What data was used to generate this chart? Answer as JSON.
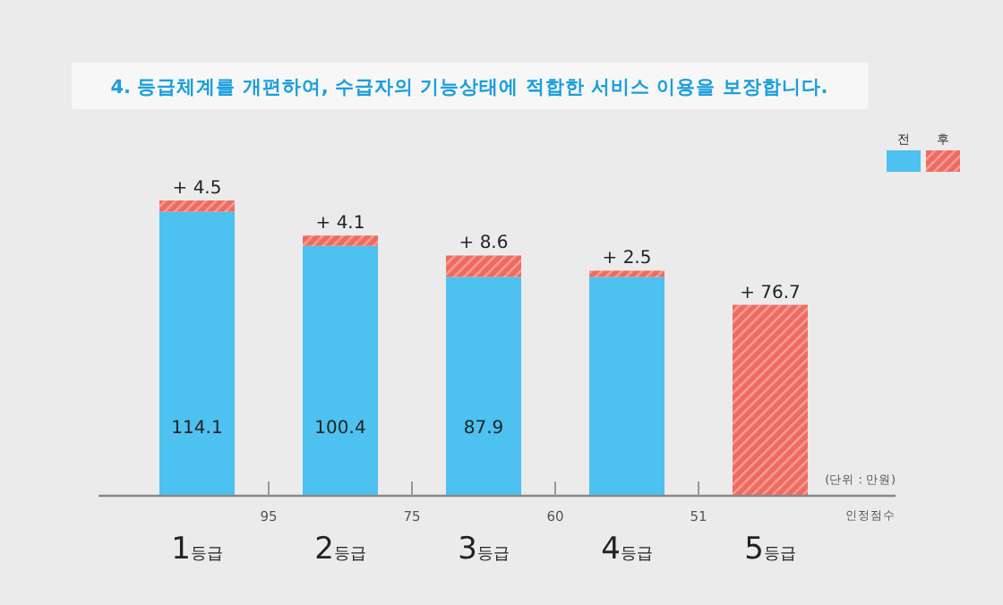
{
  "chart_data": {
    "type": "bar",
    "title": "4. 등급체계를 개편하여, 수급자의 기능상태에 적합한 서비스 이용을 보장합니다.",
    "xlabel": "인정점수",
    "categories": [
      "1등급",
      "2등급",
      "3등급",
      "4등급",
      "5등급"
    ],
    "stacked": true,
    "legend": "top right",
    "series": [
      {
        "name": "전",
        "color": "#4dc1ef",
        "values": [
          114.1,
          100.4,
          87.9,
          87.9,
          null
        ],
        "value_labels": [
          "114.1",
          "100.4",
          "87.9",
          null,
          null
        ]
      },
      {
        "name": "후",
        "color": "#ef6b61",
        "values": [
          4.5,
          4.1,
          8.6,
          2.5,
          76.7
        ],
        "value_labels": [
          "+ 4.5",
          "+ 4.1",
          "+ 8.6",
          "+ 2.5",
          "+ 76.7"
        ]
      }
    ],
    "annotations": [
      "(단위 : 만원)",
      "95",
      "75",
      "60",
      "51"
    ]
  }
}
